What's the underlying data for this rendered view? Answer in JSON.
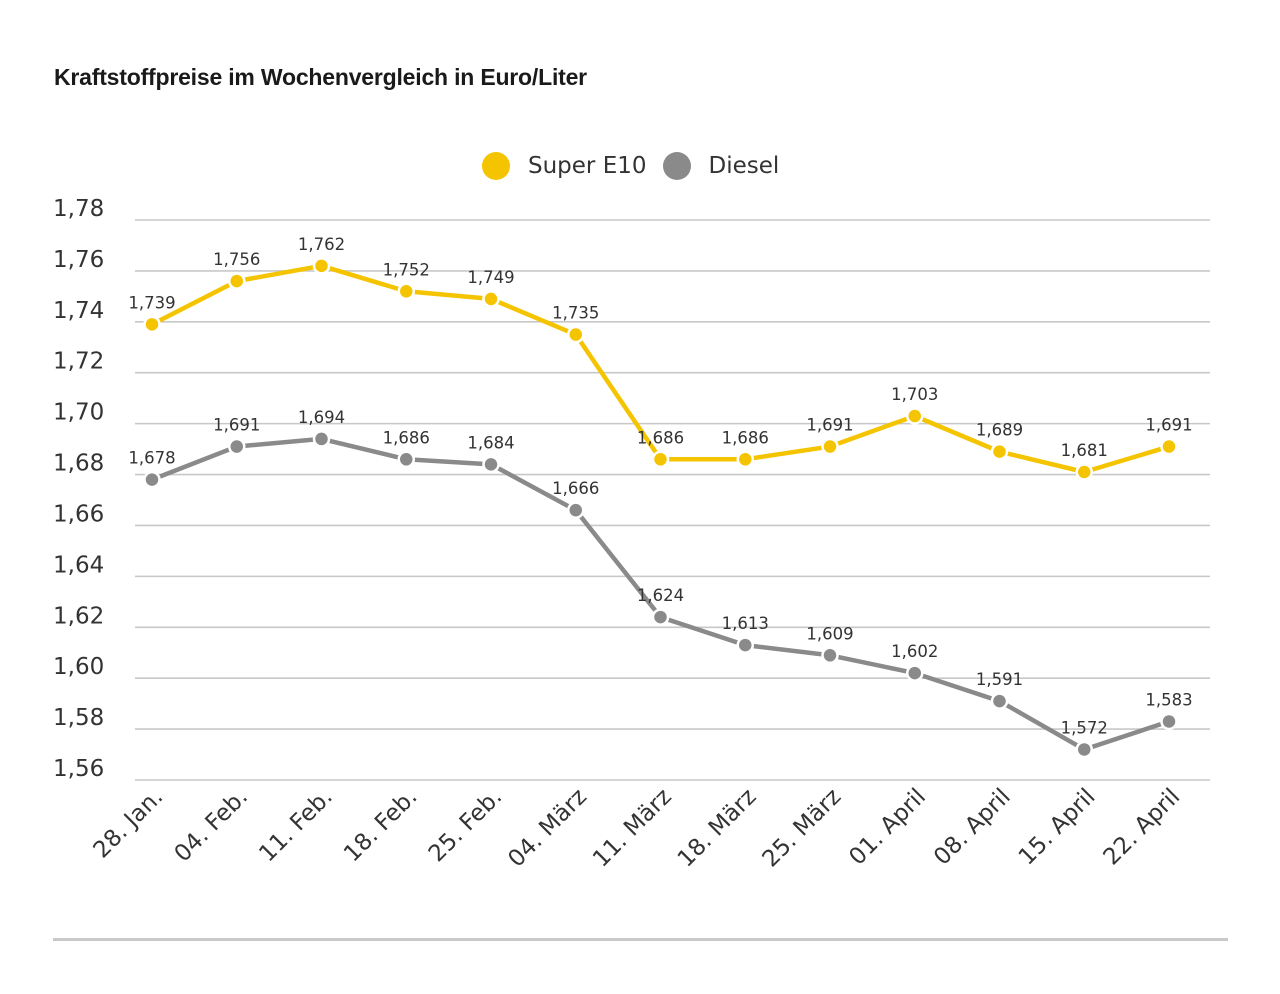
{
  "colors": {
    "e10": "#f5c400",
    "diesel": "#8a8a8a",
    "grid": "#c8c8c8",
    "text": "#333333"
  },
  "chart_data": {
    "type": "line",
    "title": "Kraftstoffpreise im Wochenvergleich in Euro/Liter",
    "categories": [
      "28. Jan.",
      "04. Feb.",
      "11. Feb.",
      "18. Feb.",
      "25. Feb.",
      "04. März",
      "11. März",
      "18. März",
      "25. März",
      "01. April",
      "08. April",
      "15. April",
      "22. April"
    ],
    "series": [
      {
        "name": "Super E10",
        "color": "#f5c400",
        "values": [
          1.739,
          1.756,
          1.762,
          1.752,
          1.749,
          1.735,
          1.686,
          1.686,
          1.691,
          1.703,
          1.689,
          1.681,
          1.691
        ],
        "labels": [
          "1,739",
          "1,756",
          "1,762",
          "1,752",
          "1,749",
          "1,735",
          "1,686",
          "1,686",
          "1,691",
          "1,703",
          "1,689",
          "1,681",
          "1,691"
        ]
      },
      {
        "name": "Diesel",
        "color": "#8a8a8a",
        "values": [
          1.678,
          1.691,
          1.694,
          1.686,
          1.684,
          1.666,
          1.624,
          1.613,
          1.609,
          1.602,
          1.591,
          1.572,
          1.583
        ],
        "labels": [
          "1,678",
          "1,691",
          "1,694",
          "1,686",
          "1,684",
          "1,666",
          "1,624",
          "1,613",
          "1,609",
          "1,602",
          "1,591",
          "1,572",
          "1,583"
        ]
      }
    ],
    "ylim": [
      1.56,
      1.78
    ],
    "yticks": [
      1.78,
      1.76,
      1.74,
      1.72,
      1.7,
      1.68,
      1.66,
      1.64,
      1.62,
      1.6,
      1.58,
      1.56
    ],
    "ytick_labels": [
      "1,78",
      "1,76",
      "1,74",
      "1,72",
      "1,70",
      "1,68",
      "1,66",
      "1,64",
      "1,62",
      "1,60",
      "1,58",
      "1,56"
    ],
    "grid": true,
    "legend": "top-center"
  }
}
